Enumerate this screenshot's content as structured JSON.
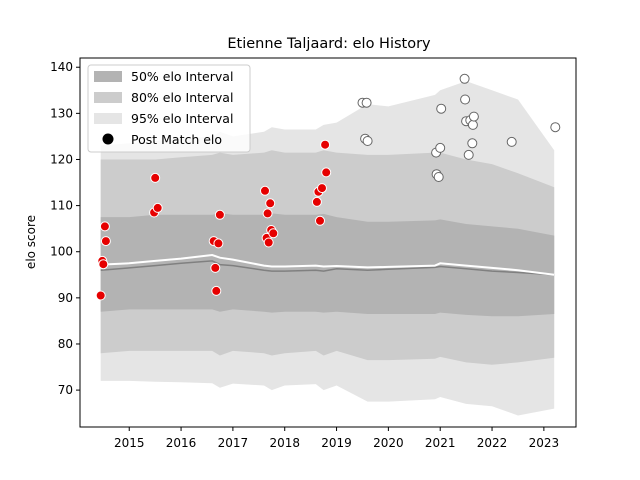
{
  "chart_data": {
    "type": "area",
    "title": "Etienne Taljaard: elo History",
    "xlabel": "",
    "ylabel": "elo score",
    "xlim": [
      2014.05,
      2023.62
    ],
    "ylim": [
      62,
      142
    ],
    "xticks": [
      2015,
      2016,
      2017,
      2018,
      2019,
      2020,
      2021,
      2022,
      2023
    ],
    "yticks": [
      70,
      80,
      90,
      100,
      110,
      120,
      130,
      140
    ],
    "legend_position": "upper-left",
    "legend": [
      {
        "label": "50% elo Interval",
        "key": "band50"
      },
      {
        "label": "80% elo Interval",
        "key": "band80"
      },
      {
        "label": "95% elo Interval",
        "key": "band95"
      },
      {
        "label": "Post Match elo",
        "key": "points"
      }
    ],
    "colors": {
      "band50": "#b3b3b3",
      "band80": "#cccccc",
      "band95": "#e5e5e5",
      "mean_line": "#ffffff",
      "median_line": "#808080",
      "point_recent": "#ffffff",
      "point_old": "#e60000",
      "point_edge_recent": "#666666"
    },
    "bands": {
      "x": [
        2014.45,
        2015.0,
        2015.5,
        2016.0,
        2016.6,
        2016.75,
        2017.0,
        2017.6,
        2017.75,
        2018.0,
        2018.6,
        2018.75,
        2019.0,
        2019.6,
        2020.0,
        2020.9,
        2021.0,
        2021.5,
        2022.0,
        2022.5,
        2023.2
      ],
      "b95_low": [
        72.0,
        72.0,
        71.8,
        71.7,
        71.5,
        70.5,
        71.4,
        71.0,
        70.0,
        71.0,
        71.3,
        70.0,
        71.0,
        67.5,
        67.5,
        68.0,
        68.5,
        67.0,
        66.5,
        64.5,
        66.0
      ],
      "b95_high": [
        123.0,
        123.5,
        124.0,
        124.5,
        125.0,
        126.0,
        125.0,
        126.0,
        127.0,
        126.5,
        126.5,
        127.5,
        128.0,
        132.0,
        131.5,
        134.0,
        135.0,
        137.0,
        135.0,
        133.0,
        122.0
      ],
      "b80_low": [
        78.0,
        78.5,
        78.5,
        78.5,
        78.5,
        77.5,
        78.5,
        78.0,
        77.5,
        78.0,
        78.5,
        77.5,
        78.5,
        76.5,
        76.5,
        76.8,
        77.2,
        76.0,
        75.5,
        76.0,
        77.0
      ],
      "b80_high": [
        120.0,
        120.0,
        120.0,
        120.5,
        121.0,
        121.5,
        121.0,
        121.5,
        122.0,
        121.5,
        121.5,
        122.0,
        121.5,
        121.0,
        121.0,
        121.5,
        121.5,
        120.0,
        119.0,
        117.0,
        114.0
      ],
      "b50_low": [
        87.0,
        87.5,
        87.5,
        87.5,
        87.5,
        87.0,
        87.5,
        87.0,
        86.8,
        87.0,
        87.0,
        86.8,
        87.0,
        86.5,
        86.5,
        86.5,
        86.8,
        86.3,
        86.0,
        86.0,
        86.5
      ],
      "b50_high": [
        107.5,
        107.5,
        108.0,
        108.0,
        108.0,
        108.3,
        108.0,
        108.0,
        108.3,
        108.0,
        108.0,
        108.2,
        107.5,
        106.5,
        106.5,
        106.8,
        107.0,
        106.0,
        105.5,
        105.0,
        103.5
      ],
      "mean": [
        97.2,
        97.5,
        98.0,
        98.5,
        99.3,
        98.7,
        98.3,
        97.0,
        96.8,
        96.8,
        97.0,
        96.8,
        96.9,
        96.6,
        96.7,
        97.0,
        97.5,
        97.0,
        96.5,
        96.0,
        95.0
      ],
      "median": [
        96.0,
        96.5,
        97.0,
        97.5,
        98.0,
        97.2,
        97.0,
        96.0,
        95.8,
        95.8,
        96.0,
        95.8,
        96.3,
        96.0,
        96.2,
        96.6,
        96.8,
        96.3,
        95.8,
        95.5,
        95.0
      ]
    },
    "points_old": [
      {
        "x": 2014.45,
        "y": 90.5
      },
      {
        "x": 2014.48,
        "y": 98.0
      },
      {
        "x": 2014.5,
        "y": 97.3
      },
      {
        "x": 2014.53,
        "y": 105.5
      },
      {
        "x": 2014.55,
        "y": 102.3
      },
      {
        "x": 2015.48,
        "y": 108.5
      },
      {
        "x": 2015.5,
        "y": 116.0
      },
      {
        "x": 2015.55,
        "y": 109.5
      },
      {
        "x": 2016.63,
        "y": 102.3
      },
      {
        "x": 2016.66,
        "y": 96.5
      },
      {
        "x": 2016.68,
        "y": 91.5
      },
      {
        "x": 2016.72,
        "y": 101.8
      },
      {
        "x": 2016.75,
        "y": 108.0
      },
      {
        "x": 2017.62,
        "y": 113.2
      },
      {
        "x": 2017.65,
        "y": 103.0
      },
      {
        "x": 2017.67,
        "y": 108.3
      },
      {
        "x": 2017.69,
        "y": 102.0
      },
      {
        "x": 2017.72,
        "y": 110.5
      },
      {
        "x": 2017.74,
        "y": 104.7
      },
      {
        "x": 2017.78,
        "y": 104.0
      },
      {
        "x": 2018.62,
        "y": 110.8
      },
      {
        "x": 2018.65,
        "y": 113.0
      },
      {
        "x": 2018.68,
        "y": 106.7
      },
      {
        "x": 2018.72,
        "y": 113.8
      },
      {
        "x": 2018.78,
        "y": 123.2
      },
      {
        "x": 2018.8,
        "y": 117.2
      }
    ],
    "points_recent": [
      {
        "x": 2019.5,
        "y": 132.3
      },
      {
        "x": 2019.55,
        "y": 124.5
      },
      {
        "x": 2019.58,
        "y": 132.3
      },
      {
        "x": 2019.6,
        "y": 124.0
      },
      {
        "x": 2020.92,
        "y": 121.5
      },
      {
        "x": 2020.93,
        "y": 116.8
      },
      {
        "x": 2020.97,
        "y": 116.2
      },
      {
        "x": 2021.0,
        "y": 122.5
      },
      {
        "x": 2021.02,
        "y": 131.0
      },
      {
        "x": 2021.47,
        "y": 137.5
      },
      {
        "x": 2021.48,
        "y": 133.0
      },
      {
        "x": 2021.5,
        "y": 128.3
      },
      {
        "x": 2021.55,
        "y": 121.0
      },
      {
        "x": 2021.58,
        "y": 128.5
      },
      {
        "x": 2021.62,
        "y": 123.5
      },
      {
        "x": 2021.63,
        "y": 127.5
      },
      {
        "x": 2021.65,
        "y": 129.3
      },
      {
        "x": 2022.38,
        "y": 123.8
      },
      {
        "x": 2023.22,
        "y": 127.0
      }
    ]
  }
}
